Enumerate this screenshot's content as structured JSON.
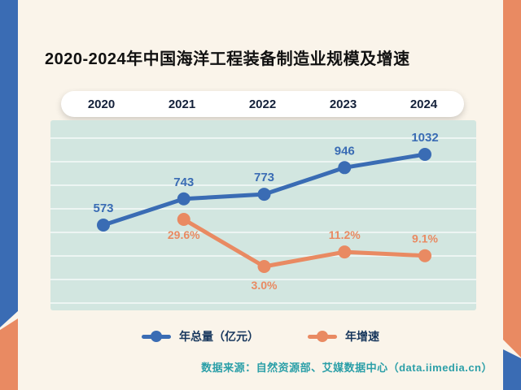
{
  "page": {
    "title": "2020-2024年中国海洋工程装备制造业规模及增速",
    "source_note": "数据来源：自然资源部、艾媒数据中心（data.iimedia.cn）"
  },
  "colors": {
    "accent_blue": "#3A6CB4",
    "accent_orange": "#E98A62",
    "chart_background": "#D2E6E0",
    "page_background": "#FAF4EA",
    "source_text": "#2B9FA8"
  },
  "chart_data": {
    "type": "line",
    "title": "2020-2024年中国海洋工程装备制造业规模及增速",
    "categories": [
      "2020",
      "2021",
      "2022",
      "2023",
      "2024"
    ],
    "series": [
      {
        "name": "年总量（亿元）",
        "color": "#3A6CB4",
        "values": [
          573,
          743,
          773,
          946,
          1032
        ],
        "labels": [
          "573",
          "743",
          "773",
          "946",
          "1032"
        ]
      },
      {
        "name": "年增速",
        "color": "#E98A62",
        "values": [
          null,
          29.6,
          3.0,
          11.2,
          9.1
        ],
        "labels": [
          "",
          "29.6%",
          "3.0%",
          "11.2%",
          "9.1%"
        ]
      }
    ],
    "legend": [
      "年总量（亿元）",
      "年增速"
    ],
    "legend_position": "bottom",
    "grid": "horizontal",
    "y_axis_visible": false,
    "x_axis_position": "top-pill"
  }
}
